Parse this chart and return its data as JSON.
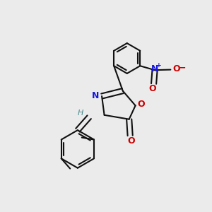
{
  "background": "#ebebeb",
  "bond_color": "#111111",
  "lw": 1.5,
  "dbo": 0.012,
  "figsize": [
    3.0,
    3.0
  ],
  "dpi": 100,
  "label_fs": 8.0,
  "N_color": "#1515e0",
  "O_color": "#cc0000",
  "H_color": "#4a8a8a",
  "xlim": [
    0.0,
    1.0
  ],
  "ylim": [
    0.0,
    1.0
  ]
}
